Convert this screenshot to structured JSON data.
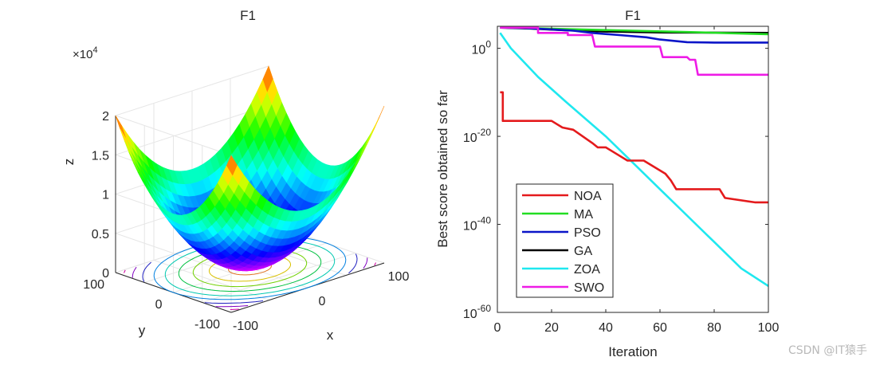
{
  "watermark": "CSDN @IT猿手",
  "chart_data": [
    {
      "type": "surface",
      "title": "F1",
      "xlabel": "x",
      "ylabel": "y",
      "zlabel": "z",
      "z_exponent_label": "×10",
      "z_exponent_power": "4",
      "x_ticks": [
        "-100",
        "0",
        "100"
      ],
      "y_ticks": [
        "-100",
        "0",
        "100"
      ],
      "z_ticks": [
        "0",
        "0.5",
        "1",
        "1.5",
        "2"
      ],
      "xlim": [
        -100,
        100
      ],
      "ylim": [
        -100,
        100
      ],
      "zlim": [
        0,
        20000
      ],
      "function": "z = x^2 + y^2",
      "colormap": "hsv",
      "contour_levels": [
        500,
        1800,
        3500,
        5500,
        7800,
        10000,
        12500,
        15000,
        17500
      ],
      "contour_colors": [
        "#e07020",
        "#d8c000",
        "#70d000",
        "#00c040",
        "#00c8b0",
        "#0080e0",
        "#2020c0",
        "#8000c0",
        "#d000a0"
      ]
    },
    {
      "type": "line",
      "title": "F1",
      "xlabel": "Iteration",
      "ylabel": "Best score obtained so far",
      "yscale": "log",
      "xlim": [
        0,
        100
      ],
      "ylim_exp": [
        -60,
        5
      ],
      "x_ticks": [
        "0",
        "20",
        "40",
        "60",
        "80",
        "100"
      ],
      "y_tick_exps": [
        0,
        -20,
        -40,
        -60
      ],
      "y_tick_base": "10",
      "y_tick_labels": [
        "0",
        "-20",
        "-40",
        "-60"
      ],
      "legend_position": "lower-left",
      "series": [
        {
          "name": "NOA",
          "color": "#e41a1c",
          "x": [
            1,
            2,
            2,
            10,
            20,
            24,
            28,
            35,
            37,
            40,
            44,
            48,
            54,
            58,
            62,
            64,
            66,
            68,
            73,
            82,
            84,
            95,
            100
          ],
          "log10_y": [
            -10,
            -10,
            -16.5,
            -16.5,
            -16.5,
            -18,
            -18.5,
            -21.5,
            -22.5,
            -22.5,
            -24,
            -25.5,
            -25.5,
            -27,
            -28.5,
            -30,
            -32,
            -32,
            -32,
            -32,
            -34,
            -35,
            -35
          ]
        },
        {
          "name": "MA",
          "color": "#22dd22",
          "x": [
            1,
            10,
            30,
            50,
            70,
            100
          ],
          "log10_y": [
            4.8,
            4.6,
            4.3,
            4.0,
            3.7,
            3.2
          ]
        },
        {
          "name": "PSO",
          "color": "#0b15c8",
          "x": [
            1,
            10,
            20,
            28,
            35,
            45,
            55,
            60,
            70,
            80,
            100
          ],
          "log10_y": [
            4.7,
            4.6,
            4.3,
            4.0,
            3.5,
            3.0,
            2.5,
            2.0,
            1.4,
            1.3,
            1.3
          ]
        },
        {
          "name": "GA",
          "color": "#000000",
          "x": [
            1,
            12,
            25,
            40,
            60,
            100
          ],
          "log10_y": [
            4.7,
            4.5,
            4.1,
            3.8,
            3.6,
            3.5
          ]
        },
        {
          "name": "ZOA",
          "color": "#1fe8ef",
          "x": [
            1,
            5,
            15,
            25,
            40,
            50,
            60,
            70,
            80,
            90,
            100
          ],
          "log10_y": [
            3.5,
            0,
            -6.5,
            -12,
            -20,
            -26,
            -32,
            -38,
            -44,
            -50,
            -54
          ]
        },
        {
          "name": "SWO",
          "color": "#ee1ce6",
          "x": [
            1,
            15,
            15,
            26,
            26,
            35,
            36,
            60,
            61,
            70,
            71,
            73,
            74,
            100
          ],
          "log10_y": [
            4.7,
            4.7,
            3.5,
            3.5,
            3.0,
            3.0,
            0.4,
            0.4,
            -2.0,
            -2.0,
            -2.6,
            -2.6,
            -6.0,
            -6.0
          ]
        }
      ]
    }
  ]
}
